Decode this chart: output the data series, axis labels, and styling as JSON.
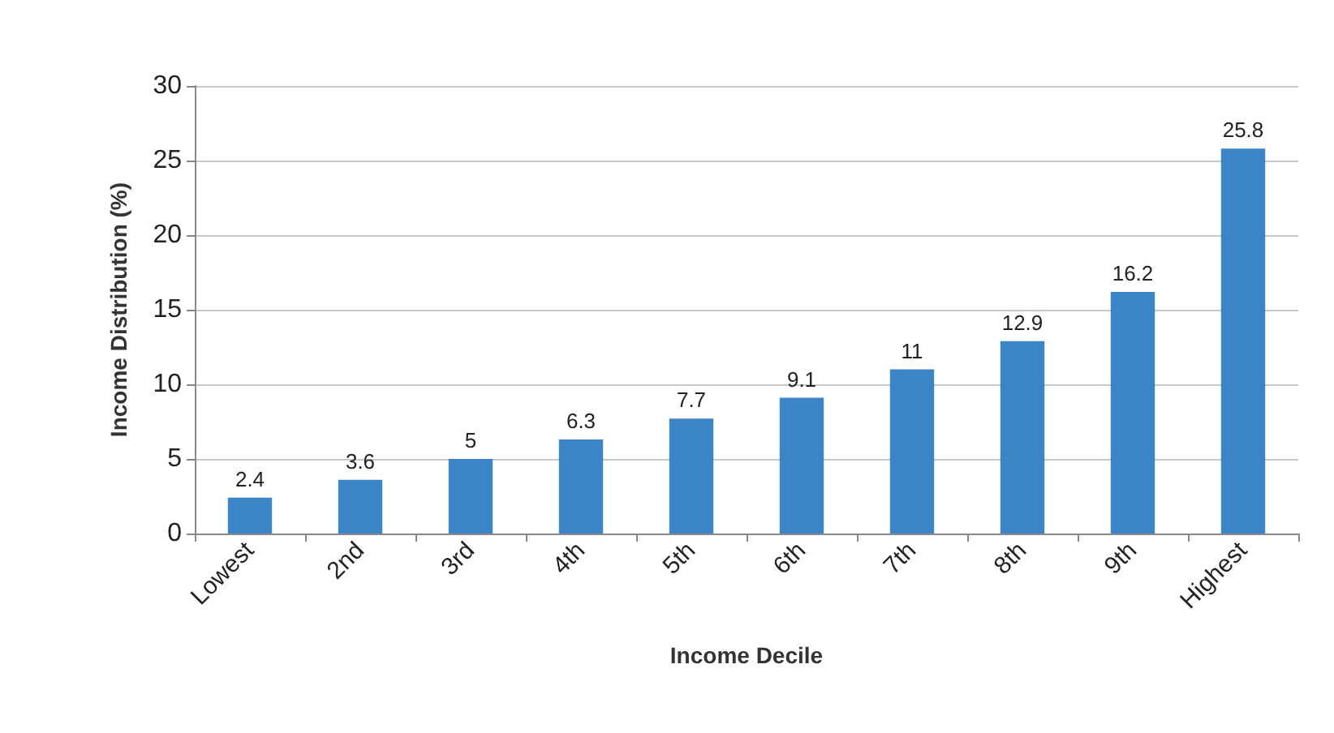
{
  "chart_data": {
    "type": "bar",
    "xlabel": "Income Decile",
    "ylabel": "Income Distribution (%)",
    "categories": [
      "Lowest",
      "2nd",
      "3rd",
      "4th",
      "5th",
      "6th",
      "7th",
      "8th",
      "9th",
      "Highest"
    ],
    "values": [
      2.4,
      3.6,
      5,
      6.3,
      7.7,
      9.1,
      11,
      12.9,
      16.2,
      25.8
    ],
    "color": "#3c84c8",
    "ylim": [
      0,
      30
    ],
    "yticks": [
      0,
      5,
      10,
      15,
      20,
      25,
      30
    ],
    "grid": "y",
    "data_labels": true
  }
}
